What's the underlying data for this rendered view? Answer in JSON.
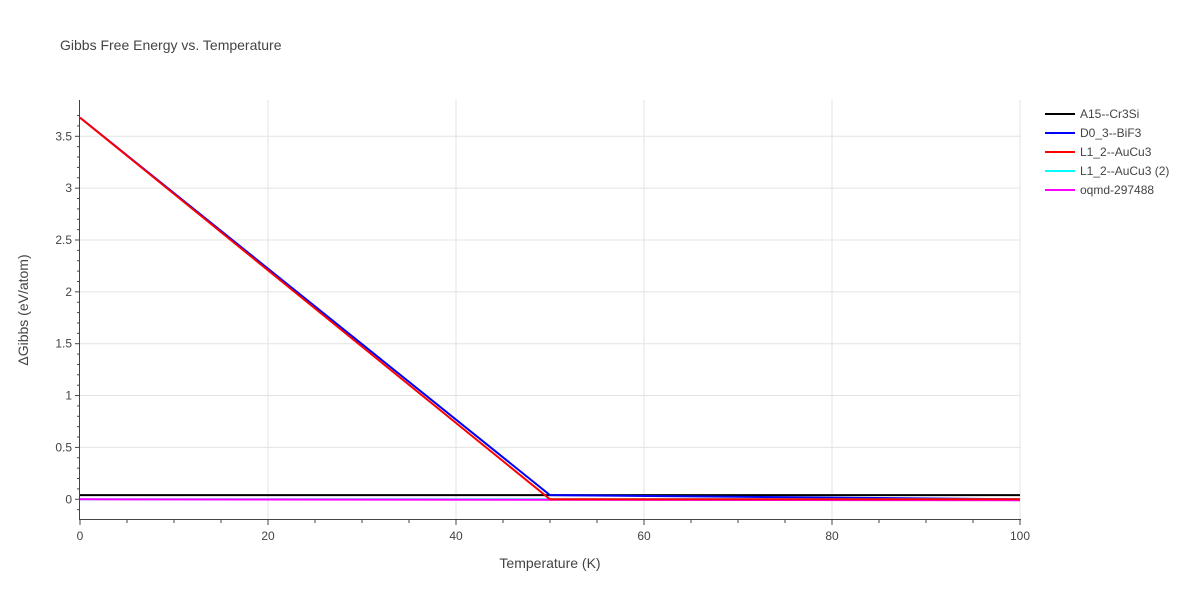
{
  "chart_data": {
    "type": "line",
    "title": "Gibbs Free Energy vs. Temperature",
    "xlabel": "Temperature (K)",
    "ylabel": "ΔGibbs (eV/atom)",
    "xlim": [
      0,
      100
    ],
    "ylim": [
      -0.2,
      3.85
    ],
    "xticks": [
      0,
      20,
      40,
      60,
      80,
      100
    ],
    "xtick_labels": [
      "0",
      "20",
      "40",
      "60",
      "80",
      "100"
    ],
    "yticks": [
      0,
      0.5,
      1,
      1.5,
      2,
      2.5,
      3,
      3.5
    ],
    "ytick_labels": [
      "0",
      "0.5",
      "1",
      "1.5",
      "2",
      "2.5",
      "3",
      "3.5"
    ],
    "grid": true,
    "legend_position": "top-right outside",
    "series": [
      {
        "name": "A15--Cr3Si",
        "color": "#000000",
        "x": [
          0,
          100
        ],
        "y": [
          0.04,
          0.04
        ]
      },
      {
        "name": "D0_3--BiF3",
        "color": "#0000ff",
        "x": [
          0,
          50,
          100
        ],
        "y": [
          3.68,
          0.04,
          0.0
        ]
      },
      {
        "name": "L1_2--AuCu3",
        "color": "#ff0000",
        "x": [
          0,
          50,
          100
        ],
        "y": [
          3.68,
          0.0,
          0.0
        ]
      },
      {
        "name": "L1_2--AuCu3 (2)",
        "color": "#00ffff",
        "x": [
          0,
          100
        ],
        "y": [
          0.0,
          0.0
        ]
      },
      {
        "name": "oqmd-297488",
        "color": "#ff00ff",
        "x": [
          0,
          100
        ],
        "y": [
          0.0,
          -0.01
        ]
      }
    ]
  }
}
